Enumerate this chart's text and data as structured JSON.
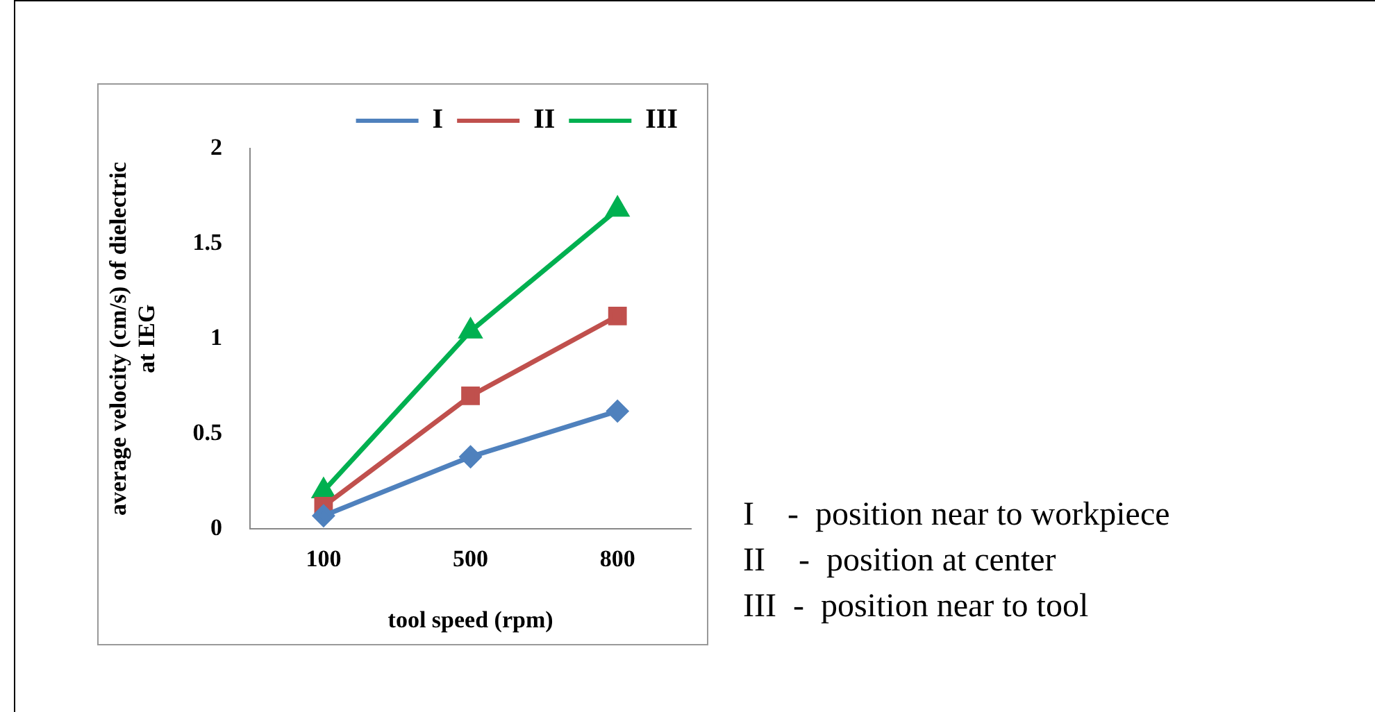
{
  "chart_data": {
    "type": "line",
    "xlabel": "tool speed (rpm)",
    "ylabel": "average velocity (cm/s) of dielectric at IEG",
    "categories": [
      "100",
      "500",
      "800"
    ],
    "series": [
      {
        "name": "I",
        "color": "#4f81bd",
        "marker": "diamond",
        "values": [
          0.07,
          0.38,
          0.62
        ]
      },
      {
        "name": "II",
        "color": "#c0504d",
        "marker": "square",
        "values": [
          0.12,
          0.7,
          1.12
        ]
      },
      {
        "name": "III",
        "color": "#00b050",
        "marker": "triangle",
        "values": [
          0.2,
          1.04,
          1.68
        ]
      }
    ],
    "ylim": [
      0,
      2
    ],
    "yticks": [
      0,
      0.5,
      1,
      1.5,
      2
    ],
    "grid": false,
    "legend": "top",
    "annotations": [
      "I    -  position near to workpiece",
      "II    -  position at center",
      "III  -  position near to tool"
    ]
  }
}
